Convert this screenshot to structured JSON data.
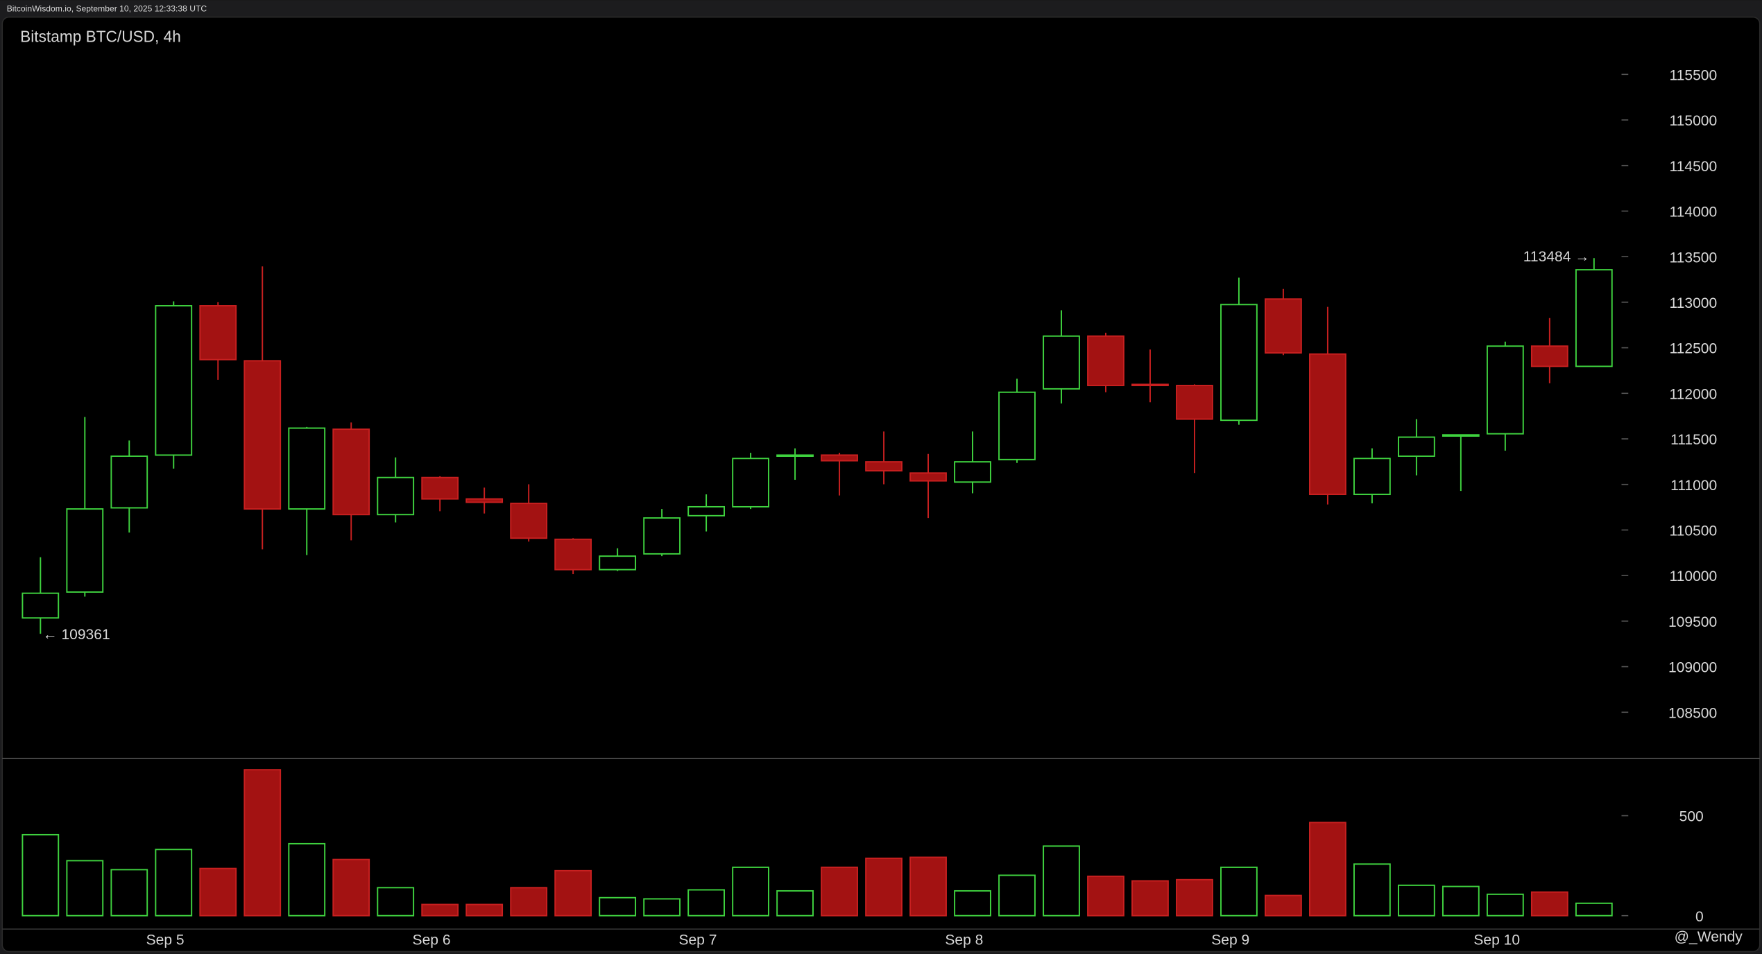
{
  "header": "BitcoinWisdom.io, September 10, 2025 12:33:38 UTC",
  "watermark": "@_Wendy",
  "chart_data": {
    "type": "candlestick",
    "title": "Bitstamp BTC/USD, 4h",
    "categories": [
      null,
      null,
      null,
      "Sep 5",
      null,
      null,
      null,
      null,
      null,
      "Sep 6",
      null,
      null,
      null,
      null,
      null,
      "Sep 7",
      null,
      null,
      null,
      null,
      null,
      "Sep 8",
      null,
      null,
      null,
      null,
      null,
      "Sep 9",
      null,
      null,
      null,
      null,
      null,
      "Sep 10",
      null,
      null
    ],
    "open": [
      109535,
      109819,
      110743,
      111322,
      112961,
      112357,
      110731,
      111606,
      110669,
      111076,
      110841,
      110792,
      110398,
      110065,
      110238,
      110657,
      110755,
      111310,
      111322,
      111248,
      111125,
      111026,
      111273,
      112049,
      112628,
      112098,
      112086,
      111704,
      113035,
      112431,
      110891,
      111310,
      111531,
      111556,
      112518,
      112296
    ],
    "high": [
      110201,
      111741,
      111482,
      113010,
      113000,
      113393,
      111630,
      111680,
      111297,
      111090,
      110965,
      111002,
      110410,
      110299,
      110731,
      110891,
      111347,
      111396,
      111347,
      111581,
      111335,
      111581,
      112160,
      112912,
      112665,
      112481,
      112098,
      113269,
      113146,
      112949,
      111396,
      111717,
      111544,
      112567,
      112826,
      113484
    ],
    "low": [
      109361,
      109769,
      110472,
      111174,
      112148,
      110287,
      110225,
      110386,
      110583,
      110706,
      110681,
      110373,
      110016,
      110050,
      110213,
      110484,
      110731,
      111051,
      110879,
      111002,
      110632,
      110903,
      111236,
      111889,
      112012,
      111901,
      111125,
      111655,
      112419,
      110780,
      110792,
      111100,
      110928,
      111371,
      112111,
      112296
    ],
    "close": [
      109806,
      110731,
      111310,
      112961,
      112370,
      110731,
      111618,
      110669,
      111076,
      110841,
      110804,
      110410,
      110065,
      110213,
      110632,
      110755,
      111285,
      111322,
      111260,
      111150,
      111039,
      111248,
      112012,
      112628,
      112086,
      112086,
      111717,
      112974,
      112444,
      110891,
      111285,
      111519,
      111544,
      112518,
      112296,
      113356
    ],
    "volume": [
      405,
      275,
      230,
      331,
      236,
      730,
      360,
      281,
      140,
      56,
      56,
      140,
      225,
      90,
      84,
      129,
      242,
      124,
      242,
      287,
      292,
      124,
      202,
      348,
      197,
      174,
      180,
      242,
      101,
      466,
      258,
      152,
      146,
      107,
      118,
      62
    ],
    "ylim": [
      107994,
      116129
    ],
    "yticks": [
      108500,
      109000,
      109500,
      110000,
      110500,
      111000,
      111500,
      112000,
      112500,
      113000,
      113500,
      114000,
      114500,
      115000,
      115500
    ],
    "volume_ylim": [
      -67,
      787
    ],
    "volume_yticks": [
      0,
      500
    ],
    "annotations": [
      {
        "text": "113484 →"
      },
      {
        "text": "← 109361"
      }
    ],
    "up_color": "#3fd23f",
    "down_color": "#a31212",
    "down_stroke": "#c82020"
  }
}
